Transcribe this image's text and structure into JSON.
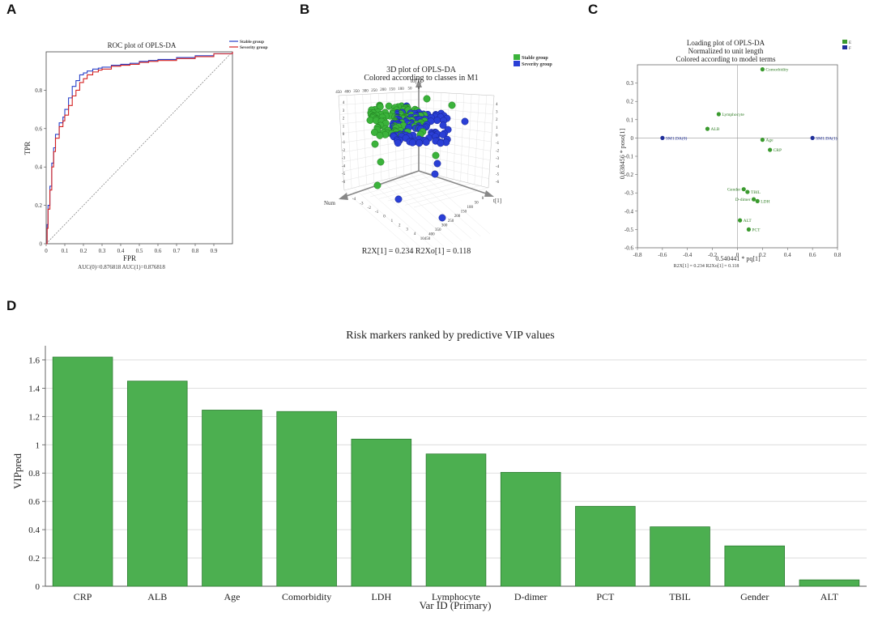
{
  "panels": {
    "a": "A",
    "b": "B",
    "c": "C",
    "d": "D"
  },
  "colors": {
    "bar": "#4caf50",
    "bar_stroke": "#2e7d32",
    "stable": "#3bb33b",
    "severity": "#2a3fd6",
    "red": "#d42020",
    "blue": "#2840c8",
    "green_pt": "#3a9a2e",
    "navy_pt": "#1f2e9a"
  },
  "chart_data": [
    {
      "id": "roc",
      "type": "line",
      "title": "ROC plot of OPLS-DA",
      "xlabel": "FPR",
      "ylabel": "TPR",
      "xlim": [
        0,
        1
      ],
      "ylim": [
        0,
        1
      ],
      "xticks": [
        "0",
        "0.1",
        "0.2",
        "0.3",
        "0.4",
        "0.5",
        "0.6",
        "0.7",
        "0.8",
        "0.9"
      ],
      "yticks": [
        "0",
        "0.2",
        "0.4",
        "0.6",
        "0.8"
      ],
      "legend": [
        "Stable group",
        "Severity group"
      ],
      "auc_text": "AUC(0)=0.876818 AUC(1)=0.876818",
      "series": [
        {
          "name": "Stable group",
          "color": "blue",
          "x": [
            0,
            0.005,
            0.01,
            0.02,
            0.03,
            0.04,
            0.05,
            0.07,
            0.09,
            0.1,
            0.12,
            0.14,
            0.16,
            0.18,
            0.2,
            0.22,
            0.25,
            0.28,
            0.3,
            0.35,
            0.4,
            0.45,
            0.5,
            0.55,
            0.6,
            0.7,
            0.8,
            0.9,
            1.0
          ],
          "y": [
            0,
            0.1,
            0.2,
            0.3,
            0.42,
            0.5,
            0.57,
            0.63,
            0.66,
            0.7,
            0.76,
            0.82,
            0.85,
            0.88,
            0.89,
            0.9,
            0.91,
            0.915,
            0.92,
            0.93,
            0.935,
            0.94,
            0.95,
            0.955,
            0.96,
            0.97,
            0.98,
            0.99,
            1.0
          ]
        },
        {
          "name": "Severity group",
          "color": "red",
          "x": [
            0,
            0.005,
            0.01,
            0.02,
            0.03,
            0.04,
            0.05,
            0.07,
            0.09,
            0.1,
            0.12,
            0.14,
            0.16,
            0.18,
            0.2,
            0.22,
            0.25,
            0.28,
            0.3,
            0.35,
            0.4,
            0.45,
            0.5,
            0.55,
            0.6,
            0.7,
            0.8,
            0.9,
            1.0
          ],
          "y": [
            0,
            0.08,
            0.18,
            0.28,
            0.4,
            0.48,
            0.55,
            0.61,
            0.64,
            0.67,
            0.72,
            0.77,
            0.8,
            0.84,
            0.86,
            0.88,
            0.895,
            0.905,
            0.91,
            0.925,
            0.93,
            0.935,
            0.945,
            0.95,
            0.955,
            0.965,
            0.975,
            0.99,
            1.0
          ]
        }
      ]
    },
    {
      "id": "plot3d",
      "type": "scatter",
      "title": "3D plot of OPLS-DA",
      "subtitle": "Colored according to classes in M1",
      "legend": [
        "Stable group",
        "Severity group"
      ],
      "axis_labels": {
        "vertical": "to[1]",
        "right": "t[1]",
        "left": "Num"
      },
      "caption": "R2X[1] = 0.234   R2Xo[1] = 0.118",
      "back_ticks": [
        "450",
        "400",
        "350",
        "300",
        "250",
        "200",
        "150",
        "100",
        "50",
        "0"
      ],
      "vertical_ticks": [
        "4",
        "3",
        "2",
        "1",
        "0",
        "-1",
        "-2",
        "-3",
        "-4",
        "-5",
        "-6"
      ],
      "num_ticks": [
        "-4",
        "-3",
        "-2",
        "-1",
        "0",
        "1",
        "2",
        "3",
        "4"
      ],
      "t_ticks": [
        "0",
        "50",
        "100",
        "150",
        "200",
        "250",
        "300",
        "350",
        "400",
        "10450"
      ]
    },
    {
      "id": "loading",
      "type": "scatter",
      "title": "Loading plot of OPLS-DA",
      "subtitle1": "Normalized to unit length",
      "subtitle2": "Colored according to model terms",
      "xlabel": "0.540441 * pq[1]",
      "ylabel": "0.838456 * poso[1]",
      "caption": "R2X[1] = 0.234   R2Xo[1] = 0.118",
      "legend": [
        "E",
        "F"
      ],
      "xlim": [
        -0.8,
        0.8
      ],
      "ylim": [
        -0.6,
        0.4
      ],
      "xticks": [
        "-0.8",
        "-0.6",
        "-0.4",
        "-0.2",
        "0",
        "0.2",
        "0.4",
        "0.6",
        "0.8"
      ],
      "yticks": [
        "0.3",
        "0.2",
        "0.1",
        "0",
        "-0.1",
        "-0.2",
        "-0.3",
        "-0.4",
        "-0.5",
        "-0.6"
      ],
      "points": [
        {
          "label": "Comorbidity",
          "x": 0.2,
          "y": 0.375,
          "kind": "var"
        },
        {
          "label": "Lymphocyte",
          "x": -0.15,
          "y": 0.13,
          "kind": "var"
        },
        {
          "label": "ALB",
          "x": -0.24,
          "y": 0.05,
          "kind": "var"
        },
        {
          "label": "Age",
          "x": 0.2,
          "y": -0.01,
          "kind": "var"
        },
        {
          "label": "CRP",
          "x": 0.26,
          "y": -0.065,
          "kind": "var"
        },
        {
          "label": "Gender",
          "x": 0.05,
          "y": -0.28,
          "kind": "var"
        },
        {
          "label": "TBIL",
          "x": 0.08,
          "y": -0.295,
          "kind": "var"
        },
        {
          "label": "D-dimer",
          "x": 0.13,
          "y": -0.335,
          "kind": "var"
        },
        {
          "label": "LDH",
          "x": 0.16,
          "y": -0.345,
          "kind": "var"
        },
        {
          "label": "ALT",
          "x": 0.02,
          "y": -0.45,
          "kind": "var"
        },
        {
          "label": "PCT",
          "x": 0.09,
          "y": -0.5,
          "kind": "var"
        },
        {
          "label": "SM1.DA(0)",
          "x": -0.6,
          "y": 0.0,
          "kind": "class"
        },
        {
          "label": "SM1.DA(1)",
          "x": 0.6,
          "y": 0.0,
          "kind": "class"
        }
      ]
    },
    {
      "id": "vip",
      "type": "bar",
      "title": "Risk markers ranked by predictive VIP values",
      "xlabel": "Var ID (Primary)",
      "ylabel": "VIPpred",
      "ylim": [
        0,
        1.7
      ],
      "yticks": [
        "0",
        "0.2",
        "0.4",
        "0.6",
        "0.8",
        "1",
        "1.2",
        "1.4",
        "1.6"
      ],
      "categories": [
        "CRP",
        "ALB",
        "Age",
        "Comorbidity",
        "LDH",
        "Lymphocyte",
        "D-dimer",
        "PCT",
        "TBIL",
        "Gender",
        "ALT"
      ],
      "values": [
        1.62,
        1.45,
        1.245,
        1.235,
        1.04,
        0.935,
        0.805,
        0.565,
        0.42,
        0.285,
        0.045
      ]
    }
  ]
}
